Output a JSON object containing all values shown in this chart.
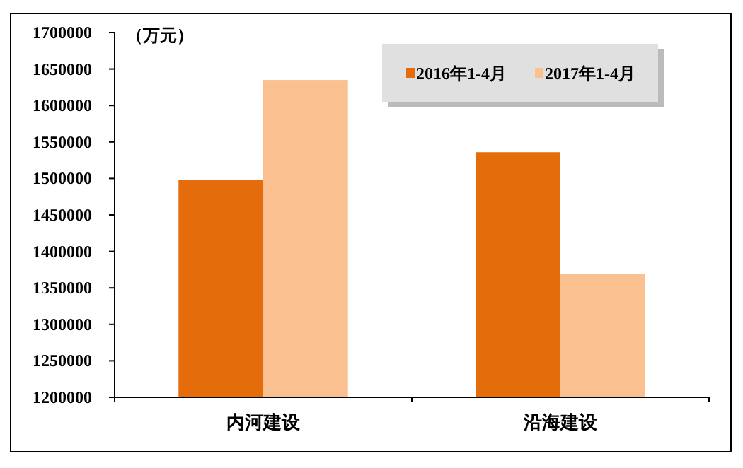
{
  "chart_data": {
    "type": "bar",
    "ylabel": "（万元）",
    "categories": [
      "内河建设",
      "沿海建设"
    ],
    "series": [
      {
        "name": "2016年1-4月",
        "color": "#e46c0a",
        "values": [
          1498000,
          1536000
        ]
      },
      {
        "name": "2017年1-4月",
        "color": "#fac090",
        "values": [
          1635000,
          1369000
        ]
      }
    ],
    "ylim": [
      1200000,
      1700000
    ],
    "yticks": [
      1200000,
      1250000,
      1300000,
      1350000,
      1400000,
      1450000,
      1500000,
      1550000,
      1600000,
      1650000,
      1700000
    ],
    "grid": false,
    "legend": "top right"
  }
}
